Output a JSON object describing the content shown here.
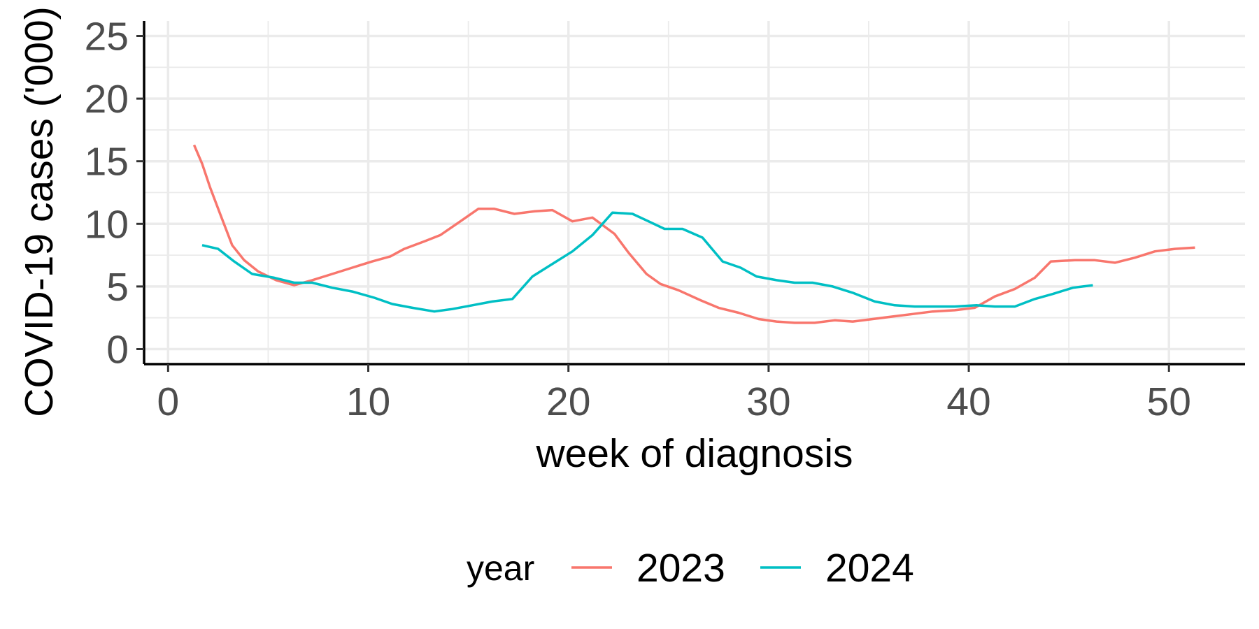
{
  "chart_data": {
    "type": "line",
    "title": "",
    "xlabel": "week of diagnosis",
    "ylabel": "COVID-19 cases ('000)",
    "xlim": [
      -1.2,
      53.8
    ],
    "ylim": [
      -1.2,
      26.2
    ],
    "x_ticks": [
      0,
      10,
      20,
      30,
      40,
      50
    ],
    "y_ticks": [
      0,
      5,
      10,
      15,
      20,
      25
    ],
    "grid": true,
    "legend": {
      "title": "year",
      "position": "bottom"
    },
    "series": [
      {
        "name": "2023",
        "color": "#F8766D",
        "x": [
          1.3,
          1.7,
          2.1,
          2.6,
          3.2,
          3.8,
          4.5,
          5.4,
          6.3,
          7.2,
          8.2,
          9.2,
          10.2,
          11.1,
          11.8,
          12.8,
          13.6,
          14.6,
          15.5,
          16.3,
          17.3,
          18.3,
          19.2,
          20.2,
          21.2,
          22.3,
          23.0,
          23.9,
          24.6,
          25.5,
          26.6,
          27.5,
          28.5,
          29.5,
          30.4,
          31.3,
          32.3,
          33.3,
          34.2,
          35.2,
          36.2,
          37.2,
          38.2,
          39.3,
          40.3,
          41.3,
          42.3,
          43.3,
          44.1,
          45.3,
          46.3,
          47.3,
          48.3,
          49.3,
          50.3,
          51.3
        ],
        "values": [
          16.3,
          14.8,
          12.9,
          10.8,
          8.3,
          7.1,
          6.2,
          5.5,
          5.1,
          5.5,
          6.0,
          6.5,
          7.0,
          7.4,
          8.0,
          8.6,
          9.1,
          10.2,
          11.2,
          11.2,
          10.8,
          11.0,
          11.1,
          10.2,
          10.5,
          9.2,
          7.7,
          6.0,
          5.2,
          4.7,
          3.9,
          3.3,
          2.9,
          2.4,
          2.2,
          2.1,
          2.1,
          2.3,
          2.2,
          2.4,
          2.6,
          2.8,
          3.0,
          3.1,
          3.3,
          4.2,
          4.8,
          5.7,
          7.0,
          7.1,
          7.1,
          6.9,
          7.3,
          7.8,
          8.0,
          8.1
        ]
      },
      {
        "name": "2024",
        "color": "#00BFC4",
        "x": [
          1.7,
          2.5,
          3.3,
          4.2,
          5.3,
          6.3,
          7.2,
          8.2,
          9.2,
          10.3,
          11.2,
          12.2,
          13.3,
          14.2,
          15.2,
          16.2,
          17.2,
          18.2,
          19.2,
          20.2,
          21.2,
          22.2,
          23.2,
          24.0,
          24.8,
          25.7,
          26.7,
          27.7,
          28.6,
          29.4,
          30.4,
          31.3,
          32.2,
          33.2,
          34.2,
          35.3,
          36.3,
          37.3,
          38.3,
          39.3,
          40.4,
          41.3,
          42.3,
          43.3,
          44.2,
          45.2,
          46.2
        ],
        "values": [
          8.3,
          8.0,
          7.0,
          6.0,
          5.7,
          5.3,
          5.3,
          4.9,
          4.6,
          4.1,
          3.6,
          3.3,
          3.0,
          3.2,
          3.5,
          3.8,
          4.0,
          5.8,
          6.8,
          7.8,
          9.1,
          10.9,
          10.8,
          10.2,
          9.6,
          9.6,
          8.9,
          7.0,
          6.5,
          5.8,
          5.5,
          5.3,
          5.3,
          5.0,
          4.5,
          3.8,
          3.5,
          3.4,
          3.4,
          3.4,
          3.5,
          3.4,
          3.4,
          4.0,
          4.4,
          4.9,
          5.1
        ]
      }
    ]
  }
}
